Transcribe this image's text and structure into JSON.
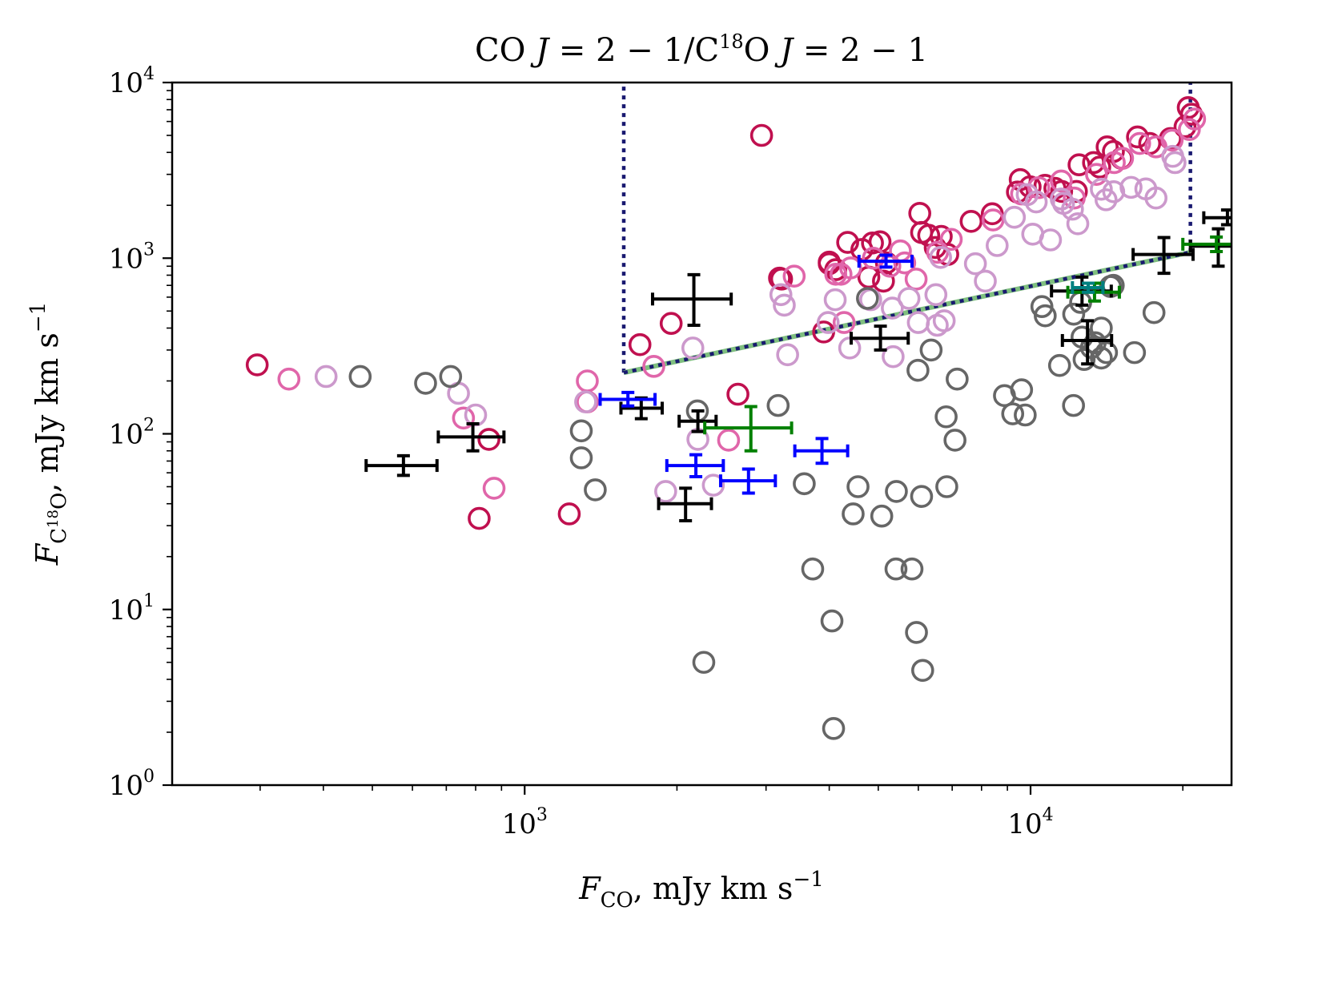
{
  "chart_data": {
    "type": "scatter",
    "title": "CO J = 2 − 1/C18O J = 2 − 1",
    "title_parts": {
      "a": "CO ",
      "b": "J",
      "c": " = 2 − 1/C",
      "sup": "18",
      "d": "O ",
      "e": "J",
      "f": " = 2 − 1"
    },
    "xlabel": "F_CO, mJy km s^-1",
    "xlabel_parts": {
      "f": "F",
      "sub": "CO",
      "rest": ", mJy km s",
      "sup": "−1"
    },
    "ylabel": "F_C18O, mJy km s^-1",
    "ylabel_parts": {
      "f": "F",
      "sub1": "C",
      "subsup": "18",
      "sub2": "O",
      "rest": ", mJy km s",
      "sup": "−1"
    },
    "xscale": "log",
    "yscale": "log",
    "xlim": [
      201,
      24960
    ],
    "ylim": [
      1,
      10000
    ],
    "x_ticks": [
      {
        "value": 1000,
        "base": "10",
        "exp": "3"
      },
      {
        "value": 10000,
        "base": "10",
        "exp": "4"
      }
    ],
    "y_ticks": [
      {
        "value": 1,
        "base": "10",
        "exp": "0"
      },
      {
        "value": 10,
        "base": "10",
        "exp": "1"
      },
      {
        "value": 100,
        "base": "10",
        "exp": "2"
      },
      {
        "value": 1000,
        "base": "10",
        "exp": "3"
      },
      {
        "value": 10000,
        "base": "10",
        "exp": "4"
      }
    ],
    "grid": false,
    "legend": "none",
    "colors": {
      "crimson": "#c0104f",
      "pink": "#e066aa",
      "lilac": "#cc99cc",
      "gray": "#666666",
      "black": "#000000",
      "blue": "#0000ff",
      "green": "#008000",
      "teal": "#008080",
      "navy": "#191970",
      "lightgreen": "#7fbf7f"
    },
    "reference_lines": [
      {
        "name": "vertical-left-limit",
        "style": "dotted",
        "color": "navy",
        "x": [
          1570,
          1570
        ],
        "y": [
          223,
          10000
        ]
      },
      {
        "name": "vertical-right-limit",
        "style": "dotted",
        "color": "navy",
        "x": [
          20700,
          20700
        ],
        "y": [
          1080,
          10000
        ]
      },
      {
        "name": "fit-line-green",
        "style": "solid",
        "color": "lightgreen",
        "x": [
          1570,
          20700
        ],
        "y": [
          223,
          1080
        ]
      },
      {
        "name": "fit-line-navy",
        "style": "dotted",
        "color": "navy",
        "x": [
          1570,
          20700
        ],
        "y": [
          223,
          1080
        ]
      }
    ],
    "series": [
      {
        "name": "model-crimson",
        "marker": "open-circle",
        "color": "crimson",
        "points": [
          [
            296,
            247
          ],
          [
            850,
            93
          ],
          [
            813,
            33
          ],
          [
            1225,
            35
          ],
          [
            1948,
            425
          ],
          [
            1690,
            322
          ],
          [
            2640,
            168
          ],
          [
            2940,
            5000
          ],
          [
            3190,
            770
          ],
          [
            3220,
            760
          ],
          [
            4000,
            950
          ],
          [
            4000,
            930
          ],
          [
            4120,
            860
          ],
          [
            4350,
            1230
          ],
          [
            4640,
            1120
          ],
          [
            4790,
            780
          ],
          [
            4870,
            1220
          ],
          [
            5040,
            1240
          ],
          [
            5190,
            940
          ],
          [
            5120,
            740
          ],
          [
            6040,
            1800
          ],
          [
            6090,
            1400
          ],
          [
            6290,
            1350
          ],
          [
            6660,
            1330
          ],
          [
            6480,
            1150
          ],
          [
            6860,
            1050
          ],
          [
            7630,
            1620
          ],
          [
            8400,
            1790
          ],
          [
            9540,
            2800
          ],
          [
            9420,
            2380
          ],
          [
            9980,
            2550
          ],
          [
            10680,
            2600
          ],
          [
            11170,
            2500
          ],
          [
            11520,
            2400
          ],
          [
            12470,
            3400
          ],
          [
            12320,
            2400
          ],
          [
            13320,
            3500
          ],
          [
            13700,
            3300
          ],
          [
            14170,
            4300
          ],
          [
            14580,
            4050
          ],
          [
            15130,
            3700
          ],
          [
            16270,
            4900
          ],
          [
            17200,
            4500
          ],
          [
            18900,
            4800
          ],
          [
            20200,
            5600
          ],
          [
            20500,
            7200
          ],
          [
            20800,
            6600
          ],
          [
            3900,
            380
          ]
        ]
      },
      {
        "name": "model-pink",
        "marker": "open-circle",
        "color": "pink",
        "points": [
          [
            342,
            205
          ],
          [
            757,
            123
          ],
          [
            1330,
            200
          ],
          [
            1330,
            152
          ],
          [
            1800,
            242
          ],
          [
            2530,
            92
          ],
          [
            4220,
            810
          ],
          [
            4410,
            880
          ],
          [
            4890,
            1000
          ],
          [
            5270,
            900
          ],
          [
            5530,
            1100
          ],
          [
            5940,
            760
          ],
          [
            6550,
            1080
          ],
          [
            6970,
            1280
          ],
          [
            8430,
            1650
          ],
          [
            9600,
            2320
          ],
          [
            10380,
            2520
          ],
          [
            11500,
            2750
          ],
          [
            12200,
            2200
          ],
          [
            13500,
            3000
          ],
          [
            14640,
            3500
          ],
          [
            15200,
            3700
          ],
          [
            16430,
            4500
          ],
          [
            17700,
            4300
          ],
          [
            19050,
            4700
          ],
          [
            20600,
            5400
          ],
          [
            21100,
            6200
          ],
          [
            4120,
            810
          ],
          [
            4280,
            430
          ],
          [
            3410,
            790
          ],
          [
            870,
            49
          ],
          [
            5640,
            940
          ]
        ]
      },
      {
        "name": "model-lilac",
        "marker": "open-circle",
        "color": "lilac",
        "points": [
          [
            405,
            212
          ],
          [
            740,
            170
          ],
          [
            800,
            128
          ],
          [
            1320,
            152
          ],
          [
            2150,
            308
          ],
          [
            2200,
            93
          ],
          [
            1900,
            47
          ],
          [
            2360,
            51
          ],
          [
            3210,
            620
          ],
          [
            3260,
            540
          ],
          [
            3310,
            282
          ],
          [
            3980,
            430
          ],
          [
            4110,
            580
          ],
          [
            4390,
            308
          ],
          [
            4830,
            580
          ],
          [
            5330,
            520
          ],
          [
            5350,
            275
          ],
          [
            5750,
            590
          ],
          [
            6000,
            430
          ],
          [
            6500,
            620
          ],
          [
            6540,
            415
          ],
          [
            6750,
            440
          ],
          [
            6640,
            1010
          ],
          [
            7780,
            930
          ],
          [
            8140,
            740
          ],
          [
            8590,
            1180
          ],
          [
            9290,
            1710
          ],
          [
            10100,
            1370
          ],
          [
            10950,
            1270
          ],
          [
            11500,
            2170
          ],
          [
            12100,
            1900
          ],
          [
            12400,
            1570
          ],
          [
            13800,
            2470
          ],
          [
            14100,
            2150
          ],
          [
            14600,
            2390
          ],
          [
            15800,
            2530
          ],
          [
            16900,
            2480
          ],
          [
            17700,
            2200
          ],
          [
            19100,
            3800
          ],
          [
            19300,
            3500
          ],
          [
            10260,
            2090
          ],
          [
            9850,
            2300
          ],
          [
            11620,
            2050
          ]
        ]
      },
      {
        "name": "observed-gray",
        "marker": "open-circle",
        "color": "gray",
        "points": [
          [
            473,
            212
          ],
          [
            637,
            194
          ],
          [
            714,
            212
          ],
          [
            1294,
            104
          ],
          [
            1294,
            73
          ],
          [
            1379,
            48
          ],
          [
            2195,
            135
          ],
          [
            2260,
            5.0
          ],
          [
            3170,
            145
          ],
          [
            3570,
            52
          ],
          [
            3710,
            17
          ],
          [
            4050,
            8.6
          ],
          [
            4080,
            2.1
          ],
          [
            4460,
            35
          ],
          [
            4560,
            50
          ],
          [
            4760,
            590
          ],
          [
            5080,
            34
          ],
          [
            5420,
            17
          ],
          [
            5430,
            47
          ],
          [
            5830,
            17
          ],
          [
            5950,
            7.4
          ],
          [
            6090,
            44
          ],
          [
            6120,
            4.5
          ],
          [
            5990,
            230
          ],
          [
            6360,
            300
          ],
          [
            6810,
            125
          ],
          [
            6830,
            50
          ],
          [
            7090,
            92
          ],
          [
            7160,
            205
          ],
          [
            8880,
            165
          ],
          [
            9220,
            130
          ],
          [
            9600,
            178
          ],
          [
            9760,
            128
          ],
          [
            10530,
            530
          ],
          [
            10690,
            470
          ],
          [
            11410,
            245
          ],
          [
            12160,
            145
          ],
          [
            12170,
            480
          ],
          [
            12640,
            355
          ],
          [
            12760,
            265
          ],
          [
            13190,
            310
          ],
          [
            13420,
            330
          ],
          [
            13800,
            400
          ],
          [
            14130,
            290
          ],
          [
            14390,
            690
          ],
          [
            14570,
            700
          ],
          [
            16050,
            290
          ],
          [
            17540,
            490
          ],
          [
            13800,
            270
          ],
          [
            12560,
            560
          ]
        ]
      },
      {
        "name": "observed-black-errorbars",
        "marker": "errorbar",
        "color": "black",
        "points": [
          {
            "x": 576,
            "y": 66,
            "xerr": [
              90,
              95
            ],
            "yerr": [
              8,
              9
            ]
          },
          {
            "x": 790,
            "y": 96,
            "xerr": [
              115,
              120
            ],
            "yerr": [
              16,
              18
            ]
          },
          {
            "x": 2160,
            "y": 585,
            "xerr": [
              370,
              400
            ],
            "yerr": [
              170,
              220
            ]
          },
          {
            "x": 1700,
            "y": 140,
            "xerr": [
              150,
              170
            ],
            "yerr": [
              18,
              20
            ]
          },
          {
            "x": 2200,
            "y": 118,
            "xerr": [
              180,
              190
            ],
            "yerr": [
              15,
              17
            ]
          },
          {
            "x": 2080,
            "y": 40,
            "xerr": [
              240,
              260
            ],
            "yerr": [
              8,
              9
            ]
          },
          {
            "x": 5050,
            "y": 350,
            "xerr": [
              630,
              680
            ],
            "yerr": [
              50,
              60
            ]
          },
          {
            "x": 12640,
            "y": 650,
            "xerr": [
              1640,
              1800
            ],
            "yerr": [
              110,
              130
            ]
          },
          {
            "x": 12960,
            "y": 340,
            "xerr": [
              1400,
              1500
            ],
            "yerr": [
              90,
              100
            ]
          },
          {
            "x": 18350,
            "y": 1050,
            "xerr": [
              2400,
              2600
            ],
            "yerr": [
              230,
              260
            ]
          },
          {
            "x": 23500,
            "y": 1170,
            "xerr": [
              2800,
              3000
            ],
            "yerr": [
              270,
              300
            ]
          },
          {
            "x": 24500,
            "y": 1700,
            "xerr": [
              2500,
              2500
            ],
            "yerr": [
              150,
              180
            ]
          }
        ]
      },
      {
        "name": "observed-blue-errorbars",
        "marker": "errorbar",
        "color": "blue",
        "points": [
          {
            "x": 1600,
            "y": 157,
            "xerr": [
              190,
              210
            ],
            "yerr": [
              13,
              15
            ]
          },
          {
            "x": 2180,
            "y": 66,
            "xerr": [
              270,
              290
            ],
            "yerr": [
              9,
              10
            ]
          },
          {
            "x": 2770,
            "y": 54,
            "xerr": [
              330,
              360
            ],
            "yerr": [
              8,
              9
            ]
          },
          {
            "x": 3870,
            "y": 80,
            "xerr": [
              450,
              480
            ],
            "yerr": [
              12,
              14
            ]
          },
          {
            "x": 5180,
            "y": 960,
            "xerr": [
              600,
              650
            ],
            "yerr": [
              70,
              80
            ]
          }
        ]
      },
      {
        "name": "observed-green-errorbars",
        "marker": "errorbar",
        "color": "green",
        "points": [
          {
            "x": 2800,
            "y": 108,
            "xerr": [
              530,
              570
            ],
            "yerr": [
              28,
              35
            ]
          },
          {
            "x": 13380,
            "y": 640,
            "xerr": [
              1530,
              1600
            ],
            "yerr": [
              70,
              80
            ]
          },
          {
            "x": 23300,
            "y": 1200,
            "xerr": [
              3300,
              3400
            ],
            "yerr": [
              110,
              120
            ]
          }
        ]
      },
      {
        "name": "observed-teal-errorbars",
        "marker": "errorbar",
        "color": "teal",
        "points": [
          {
            "x": 13000,
            "y": 680,
            "xerr": [
              900,
              900
            ],
            "yerr": [
              40,
              40
            ]
          }
        ]
      }
    ]
  }
}
